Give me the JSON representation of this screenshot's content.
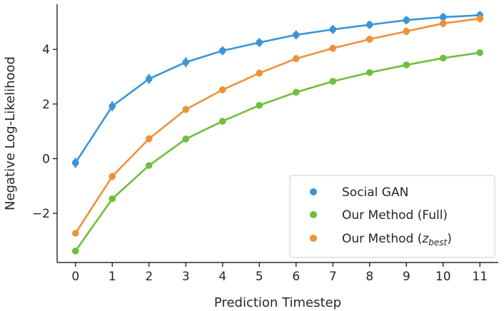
{
  "chart_data": {
    "type": "line",
    "title": "",
    "xlabel": "Prediction Timestep",
    "ylabel": "Negative Log-Likelihood",
    "x": [
      0,
      1,
      2,
      3,
      4,
      5,
      6,
      7,
      8,
      9,
      10,
      11
    ],
    "xticks": [
      0,
      1,
      2,
      3,
      4,
      5,
      6,
      7,
      8,
      9,
      10,
      11
    ],
    "xtick_labels": [
      "0",
      "1",
      "2",
      "3",
      "4",
      "5",
      "6",
      "7",
      "8",
      "9",
      "10",
      "11"
    ],
    "yticks": [
      -2,
      0,
      2,
      4
    ],
    "ytick_labels": [
      "−2",
      "0",
      "2",
      "4"
    ],
    "xlim": [
      -0.5,
      11.5
    ],
    "ylim": [
      -3.8,
      5.65
    ],
    "grid": false,
    "legend_position": "bottom-right",
    "series": [
      {
        "name": "Social GAN",
        "legend_text": "Social GAN",
        "color": "#3a95d8",
        "values": [
          -0.15,
          1.92,
          2.92,
          3.53,
          3.95,
          4.25,
          4.53,
          4.73,
          4.9,
          5.07,
          5.18,
          5.25
        ],
        "errors": [
          0.18,
          0.18,
          0.18,
          0.18,
          0.16,
          0.16,
          0.16,
          0.16,
          0.15,
          0.15,
          0.15,
          0.15
        ]
      },
      {
        "name": "Our Method (Full)",
        "legend_text": "Our Method (Full)",
        "color": "#6ebf3c",
        "values": [
          -3.38,
          -1.47,
          -0.25,
          0.72,
          1.37,
          1.95,
          2.43,
          2.83,
          3.15,
          3.43,
          3.68,
          3.88
        ],
        "errors": [
          0.08,
          0.08,
          0.08,
          0.08,
          0.08,
          0.08,
          0.08,
          0.08,
          0.08,
          0.09,
          0.09,
          0.09
        ]
      },
      {
        "name": "Our Method (z_best)",
        "legend_prefix": "Our Method (",
        "legend_var": "z",
        "legend_sub": "best",
        "legend_suffix": ")",
        "color": "#ec9239",
        "values": [
          -2.73,
          -0.65,
          0.73,
          1.8,
          2.52,
          3.13,
          3.66,
          4.04,
          4.37,
          4.66,
          4.95,
          5.13
        ],
        "errors": [
          0.12,
          0.13,
          0.13,
          0.13,
          0.13,
          0.13,
          0.13,
          0.13,
          0.13,
          0.14,
          0.14,
          0.14
        ]
      }
    ]
  }
}
